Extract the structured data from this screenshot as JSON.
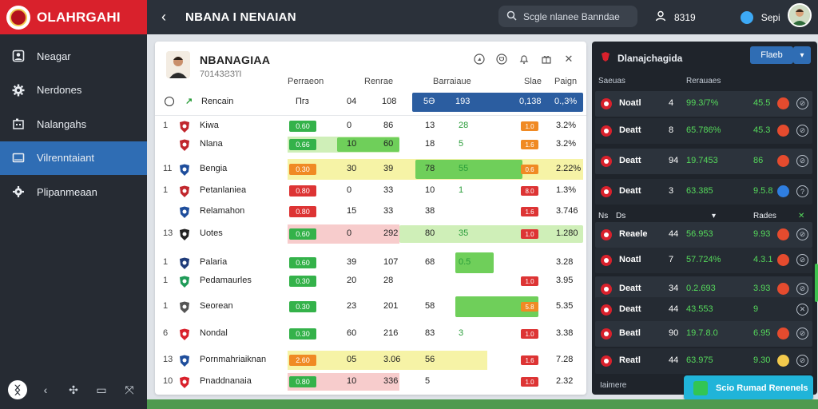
{
  "app": {
    "brand": "OLAHRGAHI",
    "title": "NBANA I NENAIAN"
  },
  "sidebar": {
    "items": [
      {
        "label": "Neagar",
        "icon": "user-square-icon"
      },
      {
        "label": "Nerdones",
        "icon": "gear-icon"
      },
      {
        "label": "Nalangahs",
        "icon": "building-icon"
      },
      {
        "label": "Vilrenntaiant",
        "icon": "monitor-icon",
        "active": true
      },
      {
        "label": "Plipanmeaan",
        "icon": "cog-icon"
      }
    ]
  },
  "topbar": {
    "search_placeholder": "Scgle nlanee Banndae",
    "count": "8319",
    "user_label": "Sepi"
  },
  "main": {
    "team_name": "NBANAGIAA",
    "team_sub": "70143Ƨ3ΊΊ",
    "columns": [
      "Perraeon",
      "Renrae",
      "Barraiaue",
      "Slae",
      "Paign"
    ],
    "header_row": {
      "name": "Rencain",
      "c1": "Пгз",
      "c2": "04",
      "c3": "108",
      "h1": "5Ə",
      "h2": "193",
      "h3": "0,138",
      "h4": "0.,3%"
    },
    "rows": [
      {
        "pos": "1",
        "name": "Kiwa",
        "pill": "0.60",
        "a": "0",
        "b": "86",
        "c": "13",
        "d": "28",
        "tag": "1.0",
        "pct": "3.2%"
      },
      {
        "pos": "",
        "name": "Nlana",
        "pill": "0.66",
        "a": "10",
        "b": "60",
        "c": "18",
        "d": "5",
        "tag": "1.6",
        "pct": "3.2%"
      },
      {
        "pos": "11",
        "name": "Bengia",
        "pill": "0.30",
        "a": "30",
        "b": "39",
        "c": "78",
        "d": "55",
        "tag": "0.6",
        "pct": "2.22%"
      },
      {
        "pos": "1",
        "name": "Petanlaniea",
        "pill": "0.80",
        "a": "0",
        "b": "33",
        "c": "10",
        "d": "1",
        "tag": "8.0",
        "pct": "1.3%"
      },
      {
        "pos": "",
        "name": "Relamahon",
        "pill": "0.80",
        "a": "15",
        "b": "33",
        "c": "38",
        "d": "",
        "tag": "1.6",
        "pct": "3.746"
      },
      {
        "pos": "13",
        "name": "Uotes",
        "pill": "0.60",
        "a": "0",
        "b": "292",
        "c": "80",
        "d": "35",
        "tag": "1.0",
        "pct": "1.280"
      },
      {
        "pos": "1",
        "name": "Palaria",
        "pill": "0.60",
        "a": "39",
        "b": "107",
        "c": "68",
        "d": "0.5",
        "tag": "",
        "pct": "3.28"
      },
      {
        "pos": "1",
        "name": "Pedamaurles",
        "pill": "0.30",
        "a": "20",
        "b": "28",
        "c": "",
        "d": "",
        "tag": "1.0",
        "pct": "3.95"
      },
      {
        "pos": "1",
        "name": "Seorean",
        "pill": "0.30",
        "a": "23",
        "b": "201",
        "c": "58",
        "d": "",
        "tag": "5.8",
        "pct": "5.35"
      },
      {
        "pos": "6",
        "name": "Nondal",
        "pill": "0.30",
        "a": "60",
        "b": "216",
        "c": "83",
        "d": "3",
        "tag": "1.0",
        "pct": "3.38"
      },
      {
        "pos": "13",
        "name": "Pornmahriaiknan",
        "pill": "2.60",
        "a": "05",
        "b": "3.06",
        "c": "56",
        "d": "",
        "tag": "1.6",
        "pct": "7.28"
      },
      {
        "pos": "10",
        "name": "Pnaddnanaia",
        "pill": "0.80",
        "a": "10",
        "b": "336",
        "c": "5",
        "d": "",
        "tag": "1.0",
        "pct": "2.32"
      }
    ]
  },
  "rpanel": {
    "title": "Dlanajchagida",
    "button": "Flaeb",
    "head": [
      "Saeuas",
      "Rerauaes"
    ],
    "rows": [
      {
        "name": "Noatl",
        "p": "4",
        "v": "99.3/7%",
        "s": "45.5",
        "dot": "#e54b2e",
        "act": "⊘"
      },
      {
        "name": "Deatt",
        "p": "8",
        "v": "65.786%",
        "s": "45.3",
        "dot": "#e54b2e",
        "act": "⊘"
      },
      {
        "name": "Deatt",
        "p": "94",
        "v": "19.7453",
        "s": "86",
        "dot": "#e54b2e",
        "act": "⊘"
      },
      {
        "name": "Deatt",
        "p": "3",
        "v": "63.385",
        "s": "9.5.8",
        "dot": "#2f7ee0",
        "act": "?"
      },
      {
        "name": "Reaele",
        "p": "44",
        "v": "56.953",
        "s": "9.93",
        "dot": "#e54b2e",
        "act": "⊘"
      },
      {
        "name": "Noatl",
        "p": "7",
        "v": "57.724%",
        "s": "4.3.1",
        "dot": "#e54b2e",
        "act": "⊘"
      },
      {
        "name": "Deatt",
        "p": "34",
        "v": "0.2.693",
        "s": "3.93",
        "dot": "#e54b2e",
        "act": "⊘"
      },
      {
        "name": "Deatt",
        "p": "44",
        "v": "43.553",
        "s": "9",
        "dot": "",
        "act": "✕"
      },
      {
        "name": "Beatl",
        "p": "90",
        "v": "19.7.8.0",
        "s": "6.95",
        "dot": "#e54b2e",
        "act": "⊘"
      },
      {
        "name": "Reatl",
        "p": "44",
        "v": "63.975",
        "s": "9.30",
        "dot": "#f2c94c",
        "act": "⊘"
      }
    ],
    "sub_head": [
      "Ns",
      "Ds",
      "Rades"
    ],
    "footer": "Iaimere",
    "cta": "Scio Rumad Renenels"
  },
  "colors": {
    "brand": "#d9212c",
    "accent": "#2f6db4",
    "positive": "#34b24a",
    "negative": "#dd3434",
    "warning": "#f08a24"
  }
}
